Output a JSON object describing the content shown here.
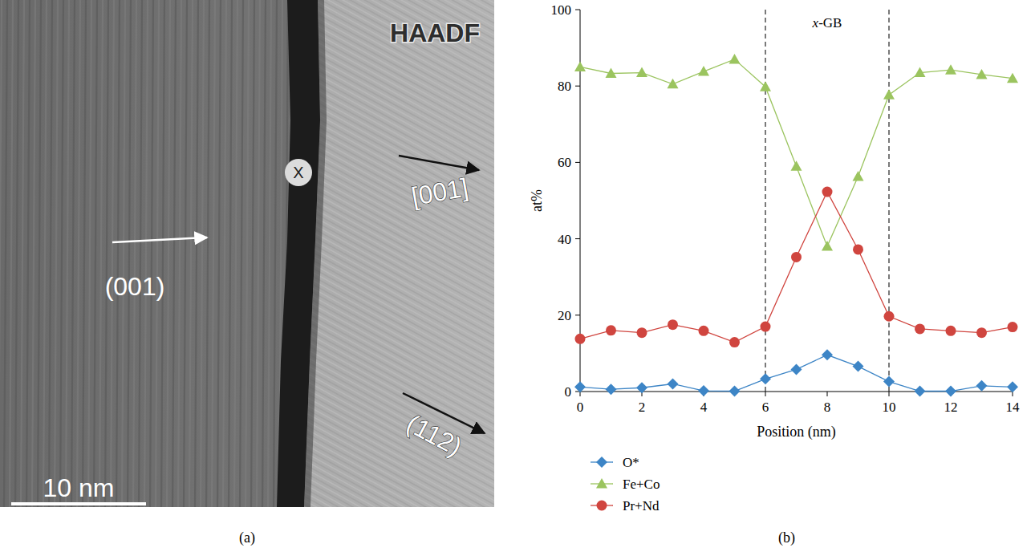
{
  "micrograph": {
    "panel_label": "(a)",
    "detector": "HAADF",
    "point_label": "X",
    "grain_labels": [
      "[001]",
      "(001)",
      "(112)"
    ],
    "scale_bar": "10 nm"
  },
  "chart_data": {
    "type": "line",
    "panel_label": "(b)",
    "x_label": "Position (nm)",
    "y_label": "at%",
    "annotation": "x-GB",
    "gb_bounds": [
      6,
      10
    ],
    "x": [
      0,
      1,
      2,
      3,
      4,
      5,
      6,
      7,
      8,
      9,
      10,
      11,
      12,
      13,
      14
    ],
    "xlim": [
      0,
      14
    ],
    "xticks": [
      0,
      2,
      4,
      6,
      8,
      10,
      12,
      14
    ],
    "ylim": [
      0,
      100
    ],
    "yticks": [
      0,
      20,
      40,
      60,
      80,
      100
    ],
    "grid": false,
    "legend": "bottom",
    "series": [
      {
        "name": "O*",
        "color": "#3d85c6",
        "marker": "diamond",
        "values": [
          1.2,
          0.6,
          1.0,
          2.0,
          0.2,
          0.1,
          3.3,
          5.8,
          9.6,
          6.6,
          2.6,
          0.1,
          0.1,
          1.5,
          1.2
        ]
      },
      {
        "name": "Fe+Co",
        "color": "#9bc45f",
        "marker": "triangle",
        "values": [
          85,
          83.3,
          83.5,
          80.5,
          83.8,
          87,
          79.8,
          59,
          38,
          56.3,
          77.7,
          83.5,
          84.2,
          83,
          82
        ]
      },
      {
        "name": "Pr+Nd",
        "color": "#d0453f",
        "marker": "circle",
        "values": [
          13.8,
          16,
          15.4,
          17.5,
          15.9,
          12.9,
          17,
          35.2,
          52.3,
          37.2,
          19.7,
          16.4,
          15.9,
          15.4,
          16.9
        ]
      }
    ]
  }
}
